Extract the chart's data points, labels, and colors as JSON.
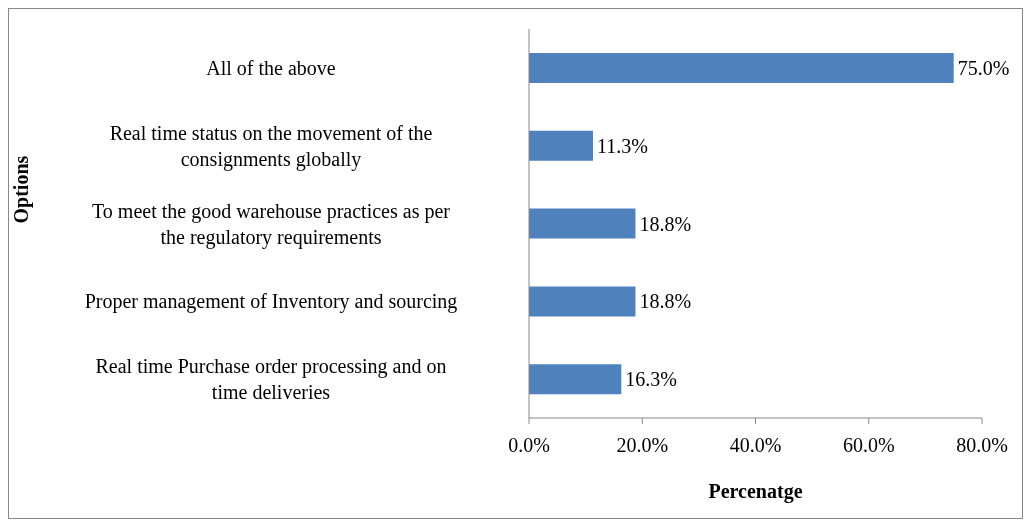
{
  "chart_data": {
    "type": "bar",
    "orientation": "horizontal",
    "xlabel": "Percenatge",
    "ylabel": "Options",
    "categories": [
      "All of the above",
      "Real time status on the movement of the consignments globally",
      "To meet the good warehouse practices as per the regulatory requirements",
      "Proper management of Inventory and sourcing",
      "Real time Purchase order processing and on time deliveries"
    ],
    "values": [
      75.0,
      11.3,
      18.8,
      18.8,
      16.3
    ],
    "value_labels": [
      "75.0%",
      "11.3%",
      "18.8%",
      "18.8%",
      "16.3%"
    ],
    "color": "#4f81bd",
    "xlim": [
      0,
      80
    ],
    "xticks": [
      {
        "value": 0,
        "label": "0.0%"
      },
      {
        "value": 20,
        "label": "20.0%"
      },
      {
        "value": 40,
        "label": "40.0%"
      },
      {
        "value": 60,
        "label": "60.0%"
      },
      {
        "value": 80,
        "label": "80.0%"
      }
    ],
    "grid": false
  }
}
